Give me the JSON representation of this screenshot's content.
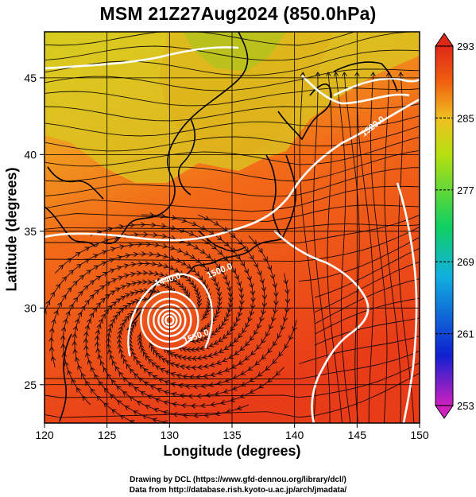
{
  "chart_data": {
    "type": "heatmap",
    "title": "MSM 21Z27Aug2024 (850.0hPa)",
    "xlabel": "Longitude (degrees)",
    "ylabel": "Latitude  (degrees)",
    "xlim": [
      120,
      150
    ],
    "ylim": [
      22.5,
      48
    ],
    "xticks": [
      "120",
      "125",
      "130",
      "135",
      "140",
      "145",
      "150"
    ],
    "yticks": [
      "25",
      "30",
      "35",
      "40",
      "45"
    ],
    "colorbar": {
      "min": 253,
      "max": 293,
      "ticks": [
        "293",
        "285",
        "277",
        "269",
        "261",
        "253"
      ],
      "palette": [
        "#d020c0",
        "#1020d0",
        "#10b0e0",
        "#10d060",
        "#b8e010",
        "#f0c020",
        "#f06010",
        "#e02818"
      ]
    },
    "contour_labels": [
      "1440.0",
      "1500.0",
      "1520.0",
      "1550.0"
    ],
    "features": {
      "cyclone_center": {
        "lon": 130.0,
        "lat": 29.2
      }
    },
    "grid": true
  },
  "credits": {
    "line1": "Drawing by DCL (https://www.gfd-dennou.org/library/dcl/)",
    "line2": "Data from http://database.rish.kyoto-u.ac.jp/arch/jmadata/"
  }
}
